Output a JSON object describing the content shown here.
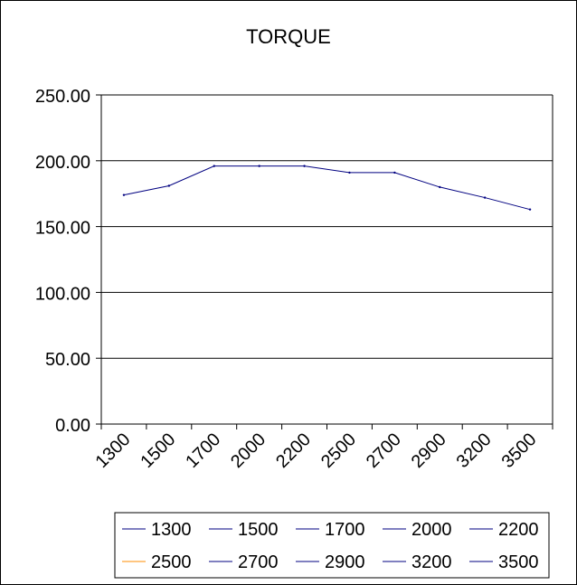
{
  "chart_data": {
    "type": "line",
    "title": "TORQUE",
    "xlabel": "",
    "ylabel": "",
    "categories": [
      "1300",
      "1500",
      "1700",
      "2000",
      "2200",
      "2500",
      "2700",
      "2900",
      "3200",
      "3500"
    ],
    "values": [
      174,
      181,
      196,
      196,
      196,
      191,
      191,
      180,
      172,
      163
    ],
    "ylim": [
      0,
      250
    ],
    "y_ticks": [
      "0.00",
      "50.00",
      "100.00",
      "150.00",
      "200.00",
      "250.00"
    ],
    "y_tick_values": [
      0,
      50,
      100,
      150,
      200,
      250
    ],
    "grid": true,
    "legend_placement": "bottom",
    "legend": [
      "1300",
      "1500",
      "1700",
      "2000",
      "2200",
      "2500",
      "2700",
      "2900",
      "3200",
      "3500"
    ],
    "colors": {
      "line": "#000080",
      "legend_marks": [
        "#000080",
        "#000080",
        "#000080",
        "#000080",
        "#000080",
        "#ff8c00",
        "#000080",
        "#000080",
        "#000080",
        "#000080"
      ],
      "grid": "#000000",
      "text": "#000000",
      "background": "#ffffff"
    }
  }
}
